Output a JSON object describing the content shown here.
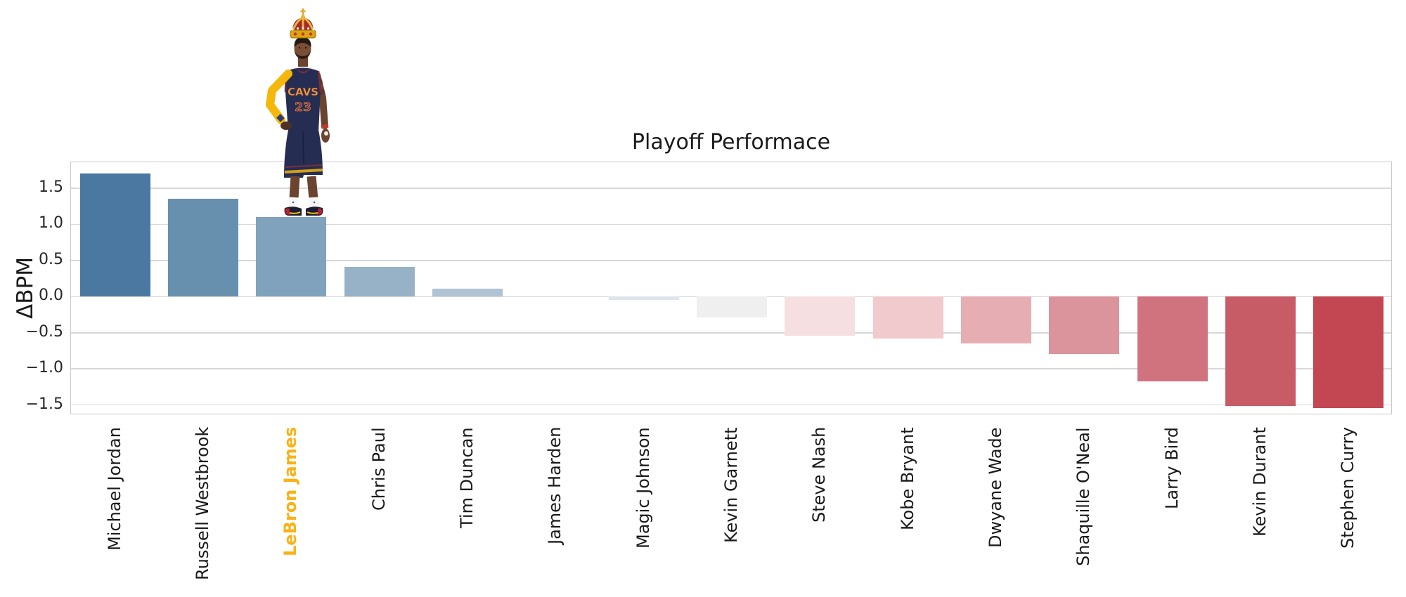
{
  "chart_data": {
    "type": "bar",
    "title": "Playoff Performace",
    "xlabel": "",
    "ylabel": "ΔBPM",
    "categories": [
      "Michael Jordan",
      "Russell Westbrook",
      "LeBron James",
      "Chris Paul",
      "Tim Duncan",
      "James Harden",
      "Magic Johnson",
      "Kevin Garnett",
      "Steve Nash",
      "Kobe Bryant",
      "Dwyane Wade",
      "Shaquille O'Neal",
      "Larry Bird",
      "Kevin Durant",
      "Stephen Curry"
    ],
    "values": [
      1.7,
      1.35,
      1.1,
      0.41,
      0.11,
      0.0,
      -0.05,
      -0.29,
      -0.54,
      -0.58,
      -0.65,
      -0.79,
      -1.17,
      -1.51,
      -1.54
    ],
    "bar_colors": [
      "#4A78A0",
      "#6690AE",
      "#80A2BC",
      "#97B2C6",
      "#AFC3D4",
      "#E9EDF0",
      "#DCE5ED",
      "#EFEFEF",
      "#F5DFE0",
      "#F0CACC",
      "#E6AEB3",
      "#DB949B",
      "#D1737E",
      "#C75C67",
      "#C24752"
    ],
    "ylim": [
      -1.64,
      1.86
    ],
    "yticks": [
      1.5,
      1.0,
      0.5,
      0.0,
      -0.5,
      -1.0,
      -1.5
    ],
    "ytick_labels": [
      "1.5",
      "1.0",
      "0.5",
      "0.0",
      "−0.5",
      "−1.0",
      "−1.5"
    ],
    "grid": true,
    "grid_color": "#D8D8D8",
    "spine_color": "#C9C9C9",
    "tick_label_color": "#262626",
    "highlight": {
      "category": "LeBron James",
      "index": 2,
      "label_color": "#FBB116",
      "bold": true
    }
  },
  "figure_decoration": {
    "name": "lebron-james-with-crown",
    "jersey_text": "CAVS",
    "jersey_number": "23",
    "colors": {
      "jersey_navy": "#262D52",
      "wine_trim": "#7A2E3C",
      "gold": "#E8A33D",
      "sleeve_yellow": "#F4B80D",
      "crown_gold": "#DBA514",
      "skin": "#6B4430"
    }
  }
}
